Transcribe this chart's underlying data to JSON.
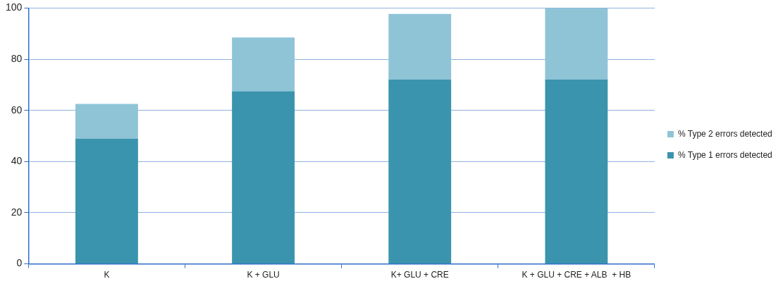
{
  "chart_data": {
    "type": "bar",
    "stacked": true,
    "categories": [
      "K",
      "K + GLU",
      "K+ GLU + CRE",
      "K + GLU + CRE + ALB  + HB"
    ],
    "series": [
      {
        "name": "% Type 1 errors detected",
        "color": "#3a94ad",
        "values": [
          49,
          67.5,
          72,
          72
        ]
      },
      {
        "name": "% Type 2 errors detected",
        "color": "#8fc4d7",
        "values": [
          13.5,
          21,
          25.7,
          28
        ]
      }
    ],
    "ylim": [
      0,
      100
    ],
    "yticks": [
      0,
      20,
      40,
      60,
      80,
      100
    ],
    "grid": "y",
    "legend": "right"
  }
}
